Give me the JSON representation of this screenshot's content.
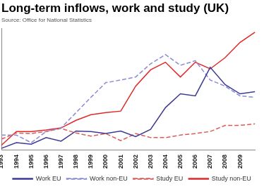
{
  "chart_data": {
    "type": "line",
    "title": "Long-term inflows, work and study (UK)",
    "subtitle": "Source: Office for National Statistics",
    "categories": [
      "1993",
      "1994",
      "1995",
      "1996",
      "1997",
      "1998",
      "1999",
      "2000",
      "2001",
      "2002",
      "2003",
      "2004",
      "2005",
      "2006",
      "2007",
      "2008",
      "2009",
      null
    ],
    "series": [
      {
        "name": "Work EU",
        "color": "#3a3a96",
        "line_style": "solid",
        "values": [
          4,
          15,
          12,
          25,
          18,
          38,
          37,
          33,
          38,
          27,
          41,
          84,
          111,
          107,
          163,
          129,
          111,
          115
        ]
      },
      {
        "name": "Work non-EU",
        "color": "#8a8ad6",
        "line_style": "dashed",
        "values": [
          30,
          30,
          15,
          37,
          44,
          74,
          104,
          133,
          138,
          144,
          170,
          188,
          167,
          176,
          138,
          126,
          107,
          104
        ]
      },
      {
        "name": "Study EU",
        "color": "#e05a5a",
        "line_style": "dashed",
        "values": [
          22,
          34,
          33,
          37,
          43,
          34,
          28,
          33,
          19,
          33,
          25,
          25,
          30,
          33,
          37,
          49,
          49,
          52
        ]
      },
      {
        "name": "Study non-EU",
        "color": "#e02828",
        "line_style": "solid",
        "values": [
          10,
          37,
          37,
          40,
          44,
          59,
          70,
          74,
          77,
          126,
          158,
          173,
          144,
          173,
          160,
          182,
          212,
          232
        ]
      }
    ],
    "ylim": [
      0,
      240
    ],
    "grid": false,
    "legend": "bottom",
    "tick_labels": "x"
  }
}
